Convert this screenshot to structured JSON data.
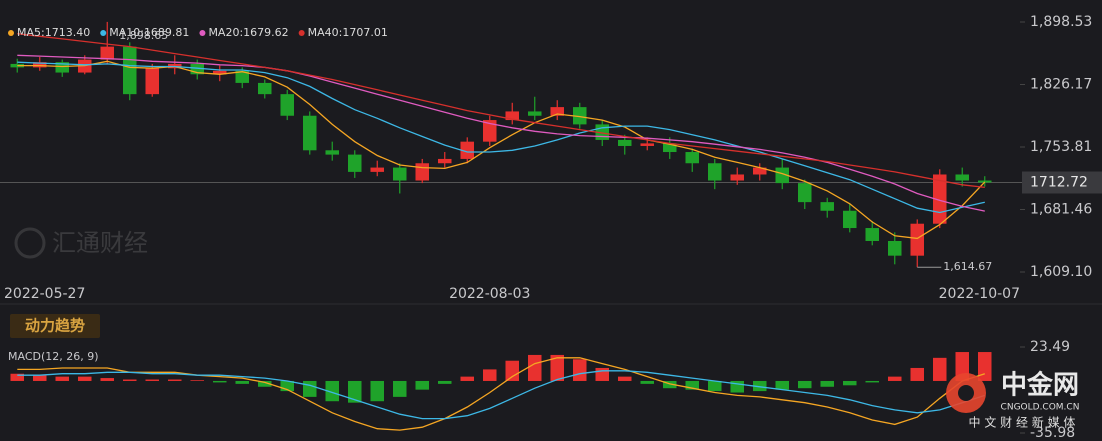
{
  "chart_data": [
    {
      "type": "candlestick",
      "categories": [
        "2022-05-27",
        null,
        null,
        null,
        null,
        null,
        null,
        null,
        null,
        null,
        null,
        null,
        null,
        null,
        null,
        null,
        null,
        null,
        null,
        null,
        null,
        "2022-08-03",
        null,
        null,
        null,
        null,
        null,
        null,
        null,
        null,
        null,
        null,
        null,
        null,
        null,
        null,
        null,
        null,
        null,
        null,
        null,
        null,
        null,
        "2022-10-07"
      ],
      "open": [
        1850,
        1846,
        1852,
        1840,
        1855,
        1870,
        1815,
        1845,
        1850,
        1838,
        1842,
        1828,
        1815,
        1790,
        1750,
        1745,
        1725,
        1730,
        1715,
        1735,
        1740,
        1760,
        1785,
        1795,
        1790,
        1800,
        1780,
        1762,
        1755,
        1758,
        1748,
        1735,
        1715,
        1722,
        1730,
        1712,
        1690,
        1680,
        1660,
        1645,
        1628,
        1665,
        1722,
        1715
      ],
      "high": [
        1856,
        1858,
        1855,
        1860,
        1898.65,
        1875,
        1850,
        1860,
        1855,
        1848,
        1846,
        1832,
        1820,
        1795,
        1760,
        1750,
        1738,
        1735,
        1740,
        1748,
        1765,
        1790,
        1805,
        1812,
        1808,
        1805,
        1785,
        1768,
        1765,
        1765,
        1752,
        1740,
        1730,
        1735,
        1740,
        1716,
        1695,
        1688,
        1668,
        1655,
        1670,
        1728,
        1730,
        1720
      ],
      "low": [
        1840,
        1842,
        1835,
        1838,
        1850,
        1808,
        1812,
        1838,
        1832,
        1830,
        1822,
        1810,
        1785,
        1745,
        1738,
        1718,
        1720,
        1700,
        1712,
        1730,
        1735,
        1755,
        1780,
        1785,
        1785,
        1775,
        1755,
        1745,
        1750,
        1740,
        1725,
        1705,
        1710,
        1715,
        1705,
        1682,
        1672,
        1655,
        1640,
        1618,
        1614.67,
        1660,
        1708,
        1708
      ],
      "close": [
        1846,
        1852,
        1840,
        1855,
        1870,
        1815,
        1845,
        1850,
        1838,
        1842,
        1828,
        1815,
        1790,
        1750,
        1745,
        1725,
        1730,
        1715,
        1735,
        1740,
        1760,
        1785,
        1795,
        1790,
        1800,
        1780,
        1762,
        1755,
        1758,
        1748,
        1735,
        1715,
        1722,
        1730,
        1712,
        1690,
        1680,
        1660,
        1645,
        1628,
        1665,
        1722,
        1715,
        1712.72
      ],
      "up_color": "#e8312f",
      "down_color": "#1fa32a",
      "ylim": [
        1609.1,
        1898.53
      ],
      "yticks": [
        {
          "value": 1898.53,
          "label": "1,898.53"
        },
        {
          "value": 1826.17,
          "label": "1,826.17"
        },
        {
          "value": 1753.81,
          "label": "1,753.81"
        },
        {
          "value": 1681.46,
          "label": "1,681.46"
        },
        {
          "value": 1609.1,
          "label": "1,609.10"
        }
      ],
      "last_price": 1712.72,
      "max_label": {
        "value": 1898.65,
        "label": "1,898.65"
      },
      "min_label": {
        "value": 1614.67,
        "label": "1,614.67"
      },
      "lines": [
        {
          "name": "MA5:1713.40",
          "color": "#f5a623",
          "values": [
            1848,
            1848,
            1847,
            1848,
            1853,
            1846,
            1845,
            1847,
            1840,
            1838,
            1841,
            1835,
            1823,
            1803,
            1780,
            1760,
            1744,
            1733,
            1730,
            1729,
            1736,
            1753,
            1768,
            1782,
            1792,
            1789,
            1785,
            1777,
            1762,
            1757,
            1751,
            1742,
            1736,
            1730,
            1723,
            1714,
            1703,
            1688,
            1667,
            1651,
            1648,
            1664,
            1686,
            1713.4
          ]
        },
        {
          "name": "MA10:1689.81",
          "color": "#3db8e6",
          "values": [
            1852,
            1851,
            1850,
            1849,
            1850,
            1848,
            1847,
            1847,
            1845,
            1843,
            1843,
            1840,
            1834,
            1824,
            1810,
            1797,
            1787,
            1776,
            1766,
            1756,
            1748,
            1748,
            1750,
            1755,
            1762,
            1770,
            1776,
            1778,
            1778,
            1774,
            1768,
            1762,
            1755,
            1748,
            1740,
            1732,
            1724,
            1716,
            1705,
            1694,
            1683,
            1678,
            1684,
            1689.81
          ]
        },
        {
          "name": "MA20:1679.62",
          "color": "#e05bc0",
          "values": [
            1860,
            1859,
            1858,
            1857,
            1856,
            1855,
            1853,
            1852,
            1851,
            1849,
            1848,
            1846,
            1842,
            1836,
            1829,
            1822,
            1815,
            1808,
            1801,
            1794,
            1787,
            1781,
            1776,
            1772,
            1769,
            1767,
            1766,
            1765,
            1764,
            1762,
            1760,
            1757,
            1754,
            1751,
            1747,
            1742,
            1736,
            1728,
            1720,
            1711,
            1700,
            1692,
            1685,
            1679.62
          ]
        },
        {
          "name": "MA40:1707.01",
          "color": "#d6302c",
          "values": [
            1885,
            1882,
            1879,
            1876,
            1873,
            1870,
            1866,
            1862,
            1858,
            1854,
            1850,
            1846,
            1842,
            1837,
            1832,
            1826,
            1820,
            1814,
            1808,
            1802,
            1796,
            1791,
            1786,
            1782,
            1778,
            1774,
            1770,
            1766,
            1762,
            1758,
            1755,
            1752,
            1749,
            1746,
            1743,
            1740,
            1737,
            1733,
            1729,
            1725,
            1720,
            1715,
            1710,
            1707.01
          ]
        }
      ]
    },
    {
      "type": "macd",
      "badge": "动力趋势",
      "title": "MACD(12, 26, 9)",
      "ylim": [
        -35.98,
        23.49
      ],
      "yticks": [
        23.49,
        -35.98
      ],
      "up_color": "#e8312f",
      "down_color": "#1fa32a",
      "histogram": [
        5,
        4,
        3,
        3,
        2,
        1,
        1,
        1,
        0.5,
        -1,
        -2,
        -4,
        -7,
        -11,
        -14,
        -15,
        -14,
        -11,
        -6,
        -2,
        3,
        8,
        14,
        18,
        18,
        15,
        9,
        3,
        -2,
        -5,
        -6,
        -7,
        -8,
        -7,
        -6,
        -5,
        -4,
        -3,
        -1,
        3,
        9,
        16,
        20,
        20
      ],
      "lines": [
        {
          "color": "#f5a623",
          "values": [
            8,
            8,
            9,
            9,
            9,
            6,
            6,
            6,
            4,
            3,
            2,
            -1,
            -6,
            -14,
            -22,
            -28,
            -33,
            -34,
            -32,
            -26,
            -18,
            -8,
            3,
            12,
            16,
            16,
            12,
            8,
            3,
            -2,
            -5,
            -8,
            -10,
            -11,
            -13,
            -15,
            -18,
            -22,
            -27,
            -30,
            -25,
            -12,
            0,
            5
          ]
        },
        {
          "color": "#3db8e6",
          "values": [
            4,
            4,
            5,
            5,
            6,
            6,
            5,
            5,
            4,
            4,
            3,
            2,
            0,
            -3,
            -8,
            -13,
            -18,
            -23,
            -26,
            -26,
            -24,
            -19,
            -12,
            -5,
            1,
            5,
            7,
            7,
            6,
            4,
            2,
            0,
            -2,
            -4,
            -6,
            -8,
            -10,
            -13,
            -17,
            -20,
            -22,
            -20,
            -15,
            -10
          ]
        }
      ]
    }
  ],
  "watermarks": {
    "left": "汇通财经",
    "brand": "中金网",
    "url": "CNGOLD.COM.CN",
    "slogan": "中 文 财 经 新 媒 体"
  }
}
